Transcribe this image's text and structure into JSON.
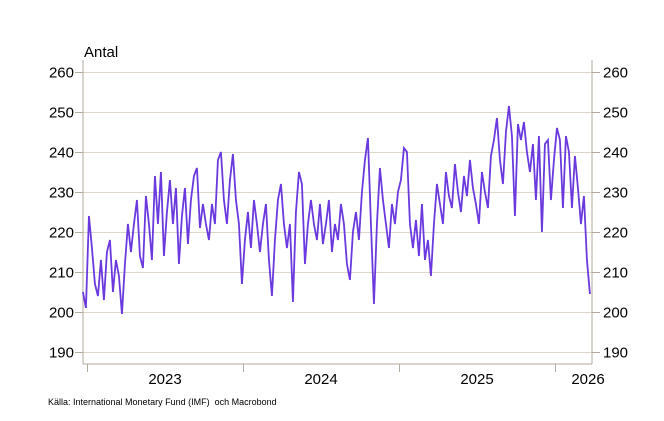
{
  "chart": {
    "title": "Antal",
    "source": "Källa: International Monetary Fund (IMF)  och Macrobond"
  },
  "chart_data": {
    "type": "line",
    "title": "Antal",
    "xlabel": "",
    "ylabel": "Antal",
    "grid": true,
    "legend": "none",
    "x_axis": {
      "tick_years": [
        2023,
        2024,
        2025,
        2026
      ]
    },
    "y_axis": {
      "tick_values": [
        190,
        200,
        210,
        220,
        230,
        240,
        250,
        260
      ],
      "sides": "both"
    },
    "xlim": [
      2022.974,
      2026.224
    ],
    "ylim": [
      187,
      263
    ],
    "series": [
      {
        "name": "Antal",
        "color": "#6a3ade",
        "x_start": 2022.974,
        "x_end": 2026.224,
        "values": [
          205,
          201,
          224,
          216,
          207,
          204,
          213,
          203,
          215,
          218,
          205,
          213,
          209,
          199.5,
          212,
          222,
          215,
          222,
          228,
          214,
          211,
          229,
          222,
          213,
          234,
          222,
          235,
          214,
          225,
          233,
          222,
          231,
          212,
          224,
          231,
          217,
          228,
          234,
          236,
          221,
          227,
          222,
          218,
          227,
          222,
          238,
          240,
          228,
          222,
          233,
          239.5,
          228,
          222,
          207,
          218,
          225,
          216,
          228,
          222,
          215,
          222,
          227,
          213,
          204,
          218,
          228,
          232,
          222,
          216,
          222,
          202.5,
          225,
          235,
          232,
          212,
          222,
          228,
          222,
          218,
          227,
          217,
          222,
          228,
          215,
          222,
          218,
          227,
          222,
          212,
          208,
          220,
          225,
          218,
          230,
          238,
          243.5,
          222,
          202,
          222,
          236,
          228,
          222,
          216,
          227,
          222,
          230,
          233,
          241,
          240,
          222,
          216,
          223,
          214,
          227,
          213,
          218,
          209,
          222,
          232,
          227,
          222,
          235,
          229,
          226,
          237,
          230,
          225,
          234,
          229,
          238,
          231,
          227,
          222,
          235,
          230,
          226,
          239,
          243,
          248.5,
          238,
          232,
          245,
          251.5,
          244,
          224,
          247,
          243,
          247.5,
          240,
          235,
          242,
          228,
          244,
          220,
          242,
          243,
          228,
          238,
          246,
          243,
          226,
          244,
          240,
          226,
          239,
          231,
          222,
          229,
          213,
          204.5
        ]
      }
    ],
    "source": "Källa: International Monetary Fund (IMF)  och Macrobond"
  },
  "colors": {
    "line": "#6a3ade",
    "grid": "#dcd6cb",
    "axis": "#b3ab9e",
    "text": "#000000",
    "background": "#ffffff"
  }
}
